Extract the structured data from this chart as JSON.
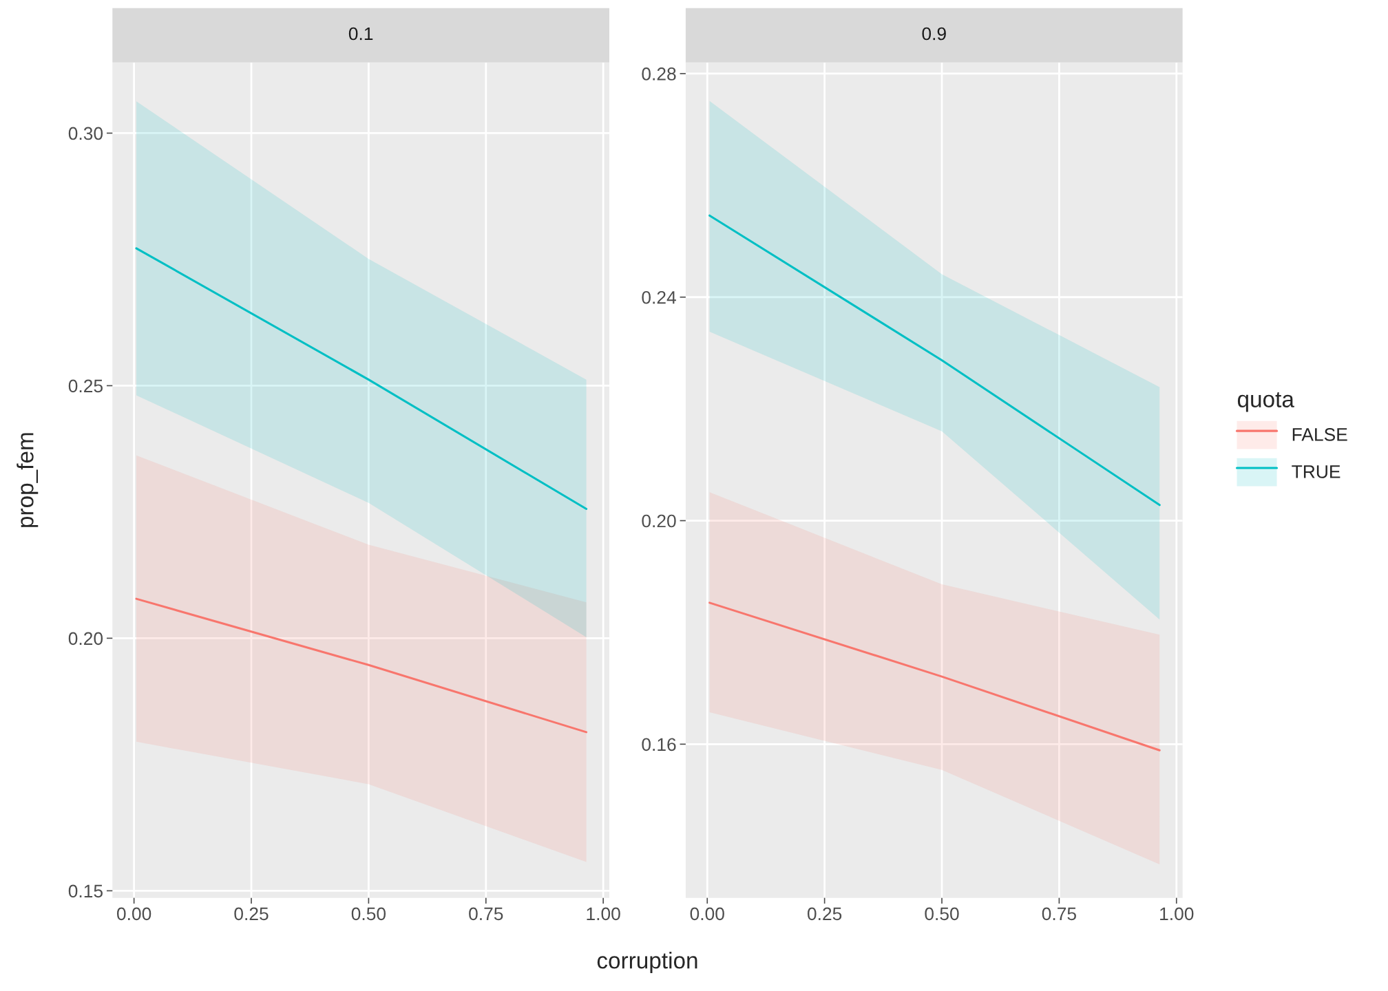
{
  "chart_data": [
    {
      "type": "line",
      "title": "0.1",
      "xlabel": "corruption",
      "ylabel": "prop_fem",
      "xlim": [
        -0.046,
        1.013
      ],
      "ylim": [
        0.1486,
        0.314
      ],
      "xticks": [
        {
          "value": 0,
          "label": "0.00"
        },
        {
          "value": 0.25,
          "label": "0.25"
        },
        {
          "value": 0.5,
          "label": "0.50"
        },
        {
          "value": 0.75,
          "label": "0.75"
        },
        {
          "value": 1,
          "label": "1.00"
        }
      ],
      "yticks": [
        {
          "value": 0.15,
          "label": "0.15"
        },
        {
          "value": 0.2,
          "label": "0.20"
        },
        {
          "value": 0.25,
          "label": "0.25"
        },
        {
          "value": 0.3,
          "label": "0.30"
        }
      ],
      "grid": true,
      "legend": "right",
      "legend_title": "quota",
      "series": [
        {
          "name": "FALSE",
          "color": "#f8766d",
          "x": [
            0.005,
            0.5,
            0.964
          ],
          "values": [
            0.2078,
            0.1947,
            0.1814
          ],
          "lower": [
            0.1795,
            0.1711,
            0.1557
          ],
          "upper": [
            0.2362,
            0.2185,
            0.2071
          ]
        },
        {
          "name": "TRUE",
          "color": "#00bfc4",
          "x": [
            0.005,
            0.5,
            0.964
          ],
          "values": [
            0.2772,
            0.2512,
            0.2256
          ],
          "lower": [
            0.2481,
            0.2268,
            0.2002
          ],
          "upper": [
            0.3063,
            0.2751,
            0.2512
          ]
        }
      ]
    },
    {
      "type": "line",
      "title": "0.9",
      "xlim": [
        -0.046,
        1.013
      ],
      "ylim": [
        0.1325,
        0.282
      ],
      "xticks": [
        {
          "value": 0,
          "label": "0.00"
        },
        {
          "value": 0.25,
          "label": "0.25"
        },
        {
          "value": 0.5,
          "label": "0.50"
        },
        {
          "value": 0.75,
          "label": "0.75"
        },
        {
          "value": 1,
          "label": "1.00"
        }
      ],
      "yticks": [
        {
          "value": 0.16,
          "label": "0.16"
        },
        {
          "value": 0.2,
          "label": "0.20"
        },
        {
          "value": 0.24,
          "label": "0.24"
        },
        {
          "value": 0.28,
          "label": "0.28"
        }
      ],
      "grid": true,
      "series": [
        {
          "color": "#f8766d",
          "x": [
            0.005,
            0.5,
            0.964
          ],
          "values": [
            0.1853,
            0.1721,
            0.1589
          ],
          "lower": [
            0.1657,
            0.1554,
            0.1385
          ],
          "upper": [
            0.2051,
            0.1886,
            0.1796
          ]
        },
        {
          "color": "#00bfc4",
          "x": [
            0.005,
            0.5,
            0.964
          ],
          "values": [
            0.2546,
            0.2287,
            0.2028
          ],
          "lower": [
            0.2338,
            0.216,
            0.1823
          ],
          "upper": [
            0.2751,
            0.2441,
            0.2239
          ]
        }
      ]
    }
  ]
}
